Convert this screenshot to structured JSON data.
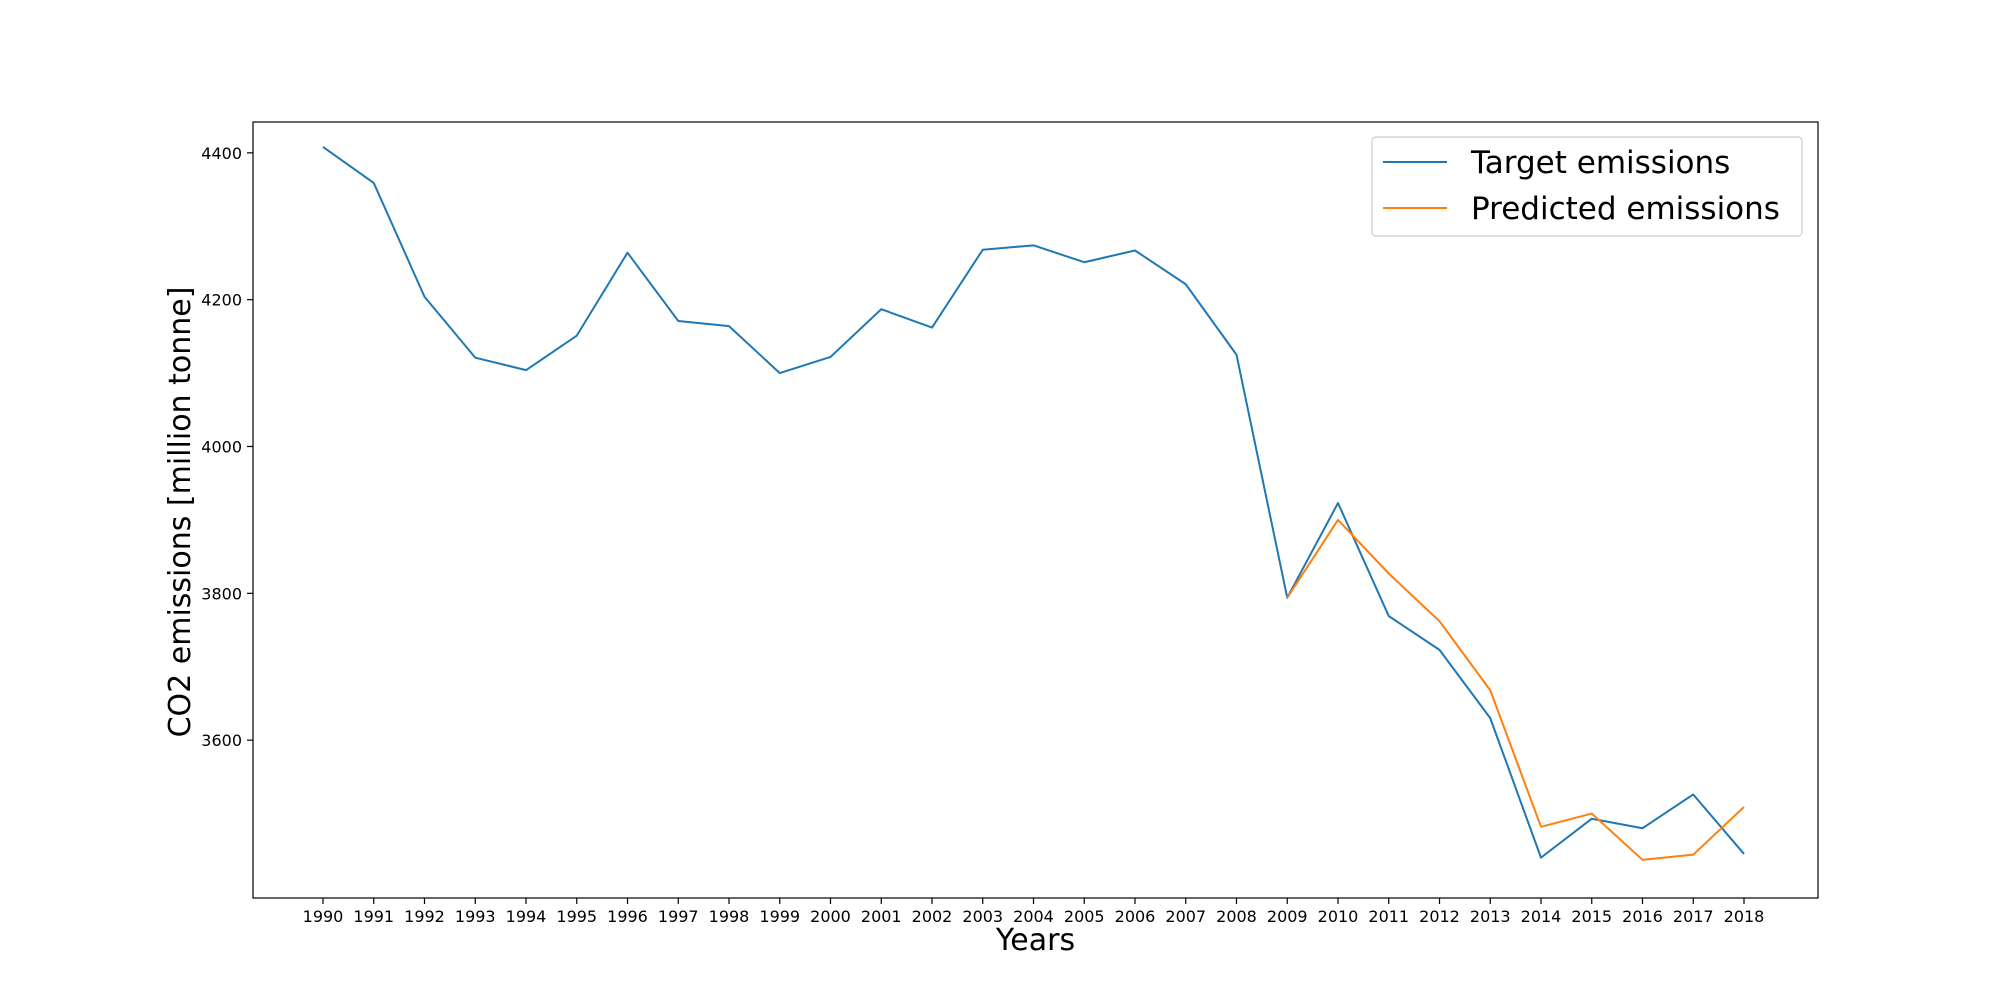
{
  "chart_data": {
    "type": "line",
    "title": "",
    "xlabel": "Years",
    "ylabel": "CO2 emissions [million tonne]",
    "x": [
      "1990",
      "1991",
      "1992",
      "1993",
      "1994",
      "1995",
      "1996",
      "1997",
      "1998",
      "1999",
      "2000",
      "2001",
      "2002",
      "2003",
      "2004",
      "2005",
      "2006",
      "2007",
      "2008",
      "2009",
      "2010",
      "2011",
      "2012",
      "2013",
      "2014",
      "2015",
      "2016",
      "2017",
      "2018"
    ],
    "yticks": [
      3600,
      3800,
      4000,
      4200,
      4400
    ],
    "ylim": [
      3385,
      4442
    ],
    "grid": false,
    "legend_position": "top-right",
    "series": [
      {
        "name": "Target emissions",
        "color": "#1f77b4",
        "values": [
          4408,
          4359,
          4204,
          4121,
          4104,
          4151,
          4264,
          4171,
          4164,
          4100,
          4122,
          4187,
          4162,
          4268,
          4274,
          4251,
          4267,
          4221,
          4125,
          3794,
          3923,
          3769,
          3723,
          3630,
          3440,
          3493,
          3480,
          3526,
          3445
        ]
      },
      {
        "name": "Predicted emissions",
        "color": "#ff7f0e",
        "x": [
          "2009",
          "2010",
          "2011",
          "2012",
          "2013",
          "2014",
          "2015",
          "2016",
          "2017",
          "2018"
        ],
        "values": [
          3794,
          3900,
          3827,
          3762,
          3668,
          3482,
          3500,
          3437,
          3444,
          3509
        ]
      }
    ]
  }
}
